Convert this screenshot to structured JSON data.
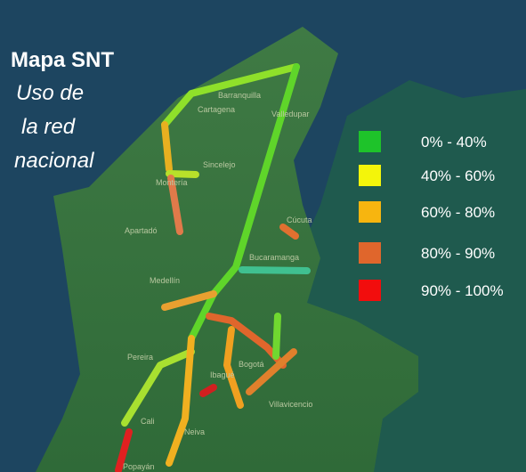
{
  "title": "Mapa SNT",
  "subtitle": [
    "Uso de",
    "la red",
    "nacional"
  ],
  "legend": [
    {
      "label": "0% - 40%",
      "color": "#1ec32a"
    },
    {
      "label": "40% - 60%",
      "color": "#f4f50a"
    },
    {
      "label": "60% - 80%",
      "color": "#f7b50f"
    },
    {
      "label": "80% - 90%",
      "color": "#e0662c"
    },
    {
      "label": "90% - 100%",
      "color": "#f20d0d"
    }
  ],
  "cities": [
    "Barranquilla",
    "Cartagena",
    "Valledupar",
    "Sincelejo",
    "Montería",
    "Apartadó",
    "Cúcuta",
    "Bucaramanga",
    "Medellín",
    "Pereira",
    "Ibagué",
    "Bogotá",
    "Villavicencio",
    "Cali",
    "Neiva",
    "Popayán"
  ]
}
